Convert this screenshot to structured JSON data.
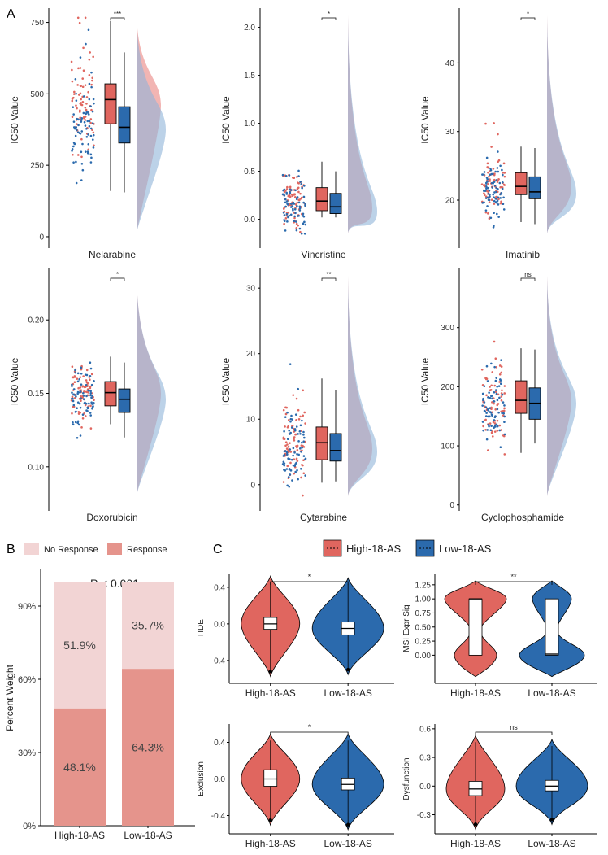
{
  "colors": {
    "high": "#e0665f",
    "low": "#2b6aad",
    "high_fill": "#f0a8a6",
    "low_fill": "#8fb4d9",
    "nores": "#f2d4d4",
    "res": "#e5948c"
  },
  "panel_labels": {
    "A": "A",
    "B": "B",
    "C": "C"
  },
  "chart_data": [
    {
      "type": "raincloud",
      "drug": "Nelarabine",
      "ylabel": "IC50 Value",
      "sig": "***",
      "ylim": [
        -40,
        800
      ],
      "ticks": [
        0,
        250,
        500,
        750
      ],
      "series": [
        {
          "name": "High-18-AS",
          "q1": 395,
          "median": 480,
          "q3": 535,
          "whisker_low": 160,
          "whisker_high": 755,
          "density_peak": 460
        },
        {
          "name": "Low-18-AS",
          "q1": 328,
          "median": 383,
          "q3": 455,
          "whisker_low": 155,
          "whisker_high": 645,
          "density_peak": 375
        }
      ]
    },
    {
      "type": "raincloud",
      "drug": "Vincristine",
      "ylabel": "IC50 Value",
      "sig": "*",
      "ylim": [
        -0.3,
        2.2
      ],
      "ticks": [
        0.0,
        0.5,
        1.0,
        1.5,
        2.0
      ],
      "series": [
        {
          "name": "High-18-AS",
          "q1": 0.09,
          "median": 0.19,
          "q3": 0.33,
          "whisker_low": 0.02,
          "whisker_high": 0.6,
          "density_peak": 0.12
        },
        {
          "name": "Low-18-AS",
          "q1": 0.06,
          "median": 0.13,
          "q3": 0.27,
          "whisker_low": 0.02,
          "whisker_high": 0.5,
          "density_peak": 0.08
        }
      ]
    },
    {
      "type": "raincloud",
      "drug": "Imatinib",
      "ylabel": "IC50 Value",
      "sig": "*",
      "ylim": [
        13,
        48
      ],
      "ticks": [
        20,
        30,
        40
      ],
      "series": [
        {
          "name": "High-18-AS",
          "q1": 20.8,
          "median": 22.0,
          "q3": 24.0,
          "whisker_low": 16.8,
          "whisker_high": 27.8,
          "density_peak": 22
        },
        {
          "name": "Low-18-AS",
          "q1": 20.2,
          "median": 21.2,
          "q3": 23.4,
          "whisker_low": 16.5,
          "whisker_high": 27.6,
          "density_peak": 21
        }
      ]
    },
    {
      "type": "raincloud",
      "drug": "Doxorubicin",
      "ylabel": "IC50 Value",
      "sig": "*",
      "ylim": [
        0.07,
        0.235
      ],
      "ticks": [
        0.1,
        0.15,
        0.2
      ],
      "series": [
        {
          "name": "High-18-AS",
          "q1": 0.1415,
          "median": 0.1505,
          "q3": 0.158,
          "whisker_low": 0.129,
          "whisker_high": 0.175,
          "density_peak": 0.15
        },
        {
          "name": "Low-18-AS",
          "q1": 0.137,
          "median": 0.146,
          "q3": 0.153,
          "whisker_low": 0.12,
          "whisker_high": 0.171,
          "density_peak": 0.146
        }
      ]
    },
    {
      "type": "raincloud",
      "drug": "Cytarabine",
      "ylabel": "IC50 Value",
      "sig": "**",
      "ylim": [
        -4,
        33
      ],
      "ticks": [
        0,
        10,
        20,
        30
      ],
      "series": [
        {
          "name": "High-18-AS",
          "q1": 3.8,
          "median": 6.4,
          "q3": 8.8,
          "whisker_low": 0.3,
          "whisker_high": 16.2,
          "density_peak": 5.5
        },
        {
          "name": "Low-18-AS",
          "q1": 3.6,
          "median": 5.2,
          "q3": 7.8,
          "whisker_low": 0.5,
          "whisker_high": 14.4,
          "density_peak": 5
        }
      ]
    },
    {
      "type": "raincloud",
      "drug": "Cyclophosphamide",
      "ylabel": "IC50 Value",
      "sig": "ns",
      "ylim": [
        -10,
        400
      ],
      "ticks": [
        0,
        100,
        200,
        300
      ],
      "series": [
        {
          "name": "High-18-AS",
          "q1": 155,
          "median": 177,
          "q3": 210,
          "whisker_low": 88,
          "whisker_high": 265,
          "density_peak": 175
        },
        {
          "name": "Low-18-AS",
          "q1": 145,
          "median": 172,
          "q3": 198,
          "whisker_low": 104,
          "whisker_high": 263,
          "density_peak": 172
        }
      ]
    },
    {
      "type": "bar",
      "ylabel": "Percent Weight",
      "categories": [
        "High-18-AS",
        "Low-18-AS"
      ],
      "legend": [
        "No Response",
        "Response"
      ],
      "pvalue": "P < 0.001",
      "ticks": [
        "0%",
        "30%",
        "60%",
        "90%"
      ],
      "series": [
        {
          "name": "No Response",
          "values": [
            51.9,
            35.7
          ],
          "labels": [
            "51.9%",
            "35.7%"
          ]
        },
        {
          "name": "Response",
          "values": [
            48.1,
            64.3
          ],
          "labels": [
            "48.1%",
            "64.3%"
          ]
        }
      ]
    },
    {
      "type": "violin",
      "legend": [
        "High-18-AS",
        "Low-18-AS"
      ],
      "panels": [
        {
          "ylabel": "TIDE",
          "sig": "*",
          "ylim": [
            -0.65,
            0.55
          ],
          "ticks": [
            -0.4,
            0.0,
            0.4
          ],
          "categories": [
            "High-18-AS",
            "Low-18-AS"
          ],
          "series": [
            {
              "name": "High-18-AS",
              "q1": -0.06,
              "median": 0.0,
              "q3": 0.07,
              "min": -0.52,
              "max": 0.45
            },
            {
              "name": "Low-18-AS",
              "q1": -0.12,
              "median": -0.05,
              "q3": 0.02,
              "min": -0.5,
              "max": 0.43
            }
          ]
        },
        {
          "ylabel": "MSI Expr Sig",
          "sig": "**",
          "ylim": [
            -0.5,
            1.45
          ],
          "ticks": [
            0.0,
            0.25,
            0.5,
            0.75,
            1.0,
            1.25
          ],
          "categories": [
            "High-18-AS",
            "Low-18-AS"
          ],
          "series": [
            {
              "name": "High-18-AS",
              "q1": 0.0,
              "median": 1.0,
              "q3": 1.0,
              "min": 0.0,
              "max": 1.0
            },
            {
              "name": "Low-18-AS",
              "q1": 0.0,
              "median": 0.02,
              "q3": 1.0,
              "min": 0.0,
              "max": 1.0
            }
          ]
        },
        {
          "ylabel": "Exclusion",
          "sig": "*",
          "ylim": [
            -0.6,
            0.6
          ],
          "ticks": [
            -0.4,
            0.0,
            0.4
          ],
          "categories": [
            "High-18-AS",
            "Low-18-AS"
          ],
          "series": [
            {
              "name": "High-18-AS",
              "q1": -0.08,
              "median": 0.0,
              "q3": 0.1,
              "min": -0.45,
              "max": 0.42
            },
            {
              "name": "Low-18-AS",
              "q1": -0.12,
              "median": -0.06,
              "q3": 0.01,
              "min": -0.5,
              "max": 0.42
            }
          ]
        },
        {
          "ylabel": "Dysfunction",
          "sig": "ns",
          "ylim": [
            -0.5,
            0.65
          ],
          "ticks": [
            -0.3,
            0.0,
            0.3,
            0.6
          ],
          "categories": [
            "High-18-AS",
            "Low-18-AS"
          ],
          "series": [
            {
              "name": "High-18-AS",
              "q1": -0.1,
              "median": -0.03,
              "q3": 0.05,
              "min": -0.4,
              "max": 0.46
            },
            {
              "name": "Low-18-AS",
              "q1": -0.05,
              "median": 0.0,
              "q3": 0.06,
              "min": -0.35,
              "max": 0.42
            }
          ]
        }
      ]
    }
  ]
}
